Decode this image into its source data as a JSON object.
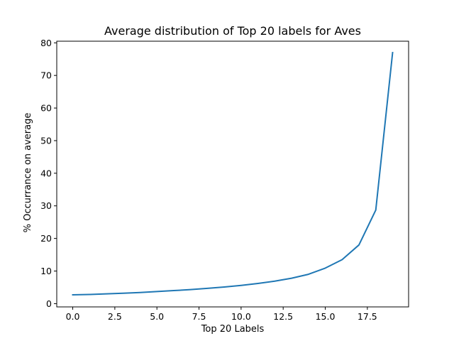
{
  "chart_data": {
    "type": "line",
    "title": "Average distribution of Top 20 labels for Aves",
    "xlabel": "Top 20 Labels",
    "ylabel": "% Occurrance on average",
    "xlim": [
      -0.95,
      19.95
    ],
    "ylim": [
      -1.0,
      80.5
    ],
    "xticks": [
      0.0,
      2.5,
      5.0,
      7.5,
      10.0,
      12.5,
      15.0,
      17.5
    ],
    "xtick_labels": [
      "0.0",
      "2.5",
      "5.0",
      "7.5",
      "10.0",
      "12.5",
      "15.0",
      "17.5"
    ],
    "yticks": [
      0,
      10,
      20,
      30,
      40,
      50,
      60,
      70,
      80
    ],
    "ytick_labels": [
      "0",
      "10",
      "20",
      "30",
      "40",
      "50",
      "60",
      "70",
      "80"
    ],
    "grid": false,
    "series": [
      {
        "color": "#1f77b4",
        "x": [
          0,
          1,
          2,
          3,
          4,
          5,
          6,
          7,
          8,
          9,
          10,
          11,
          12,
          13,
          14,
          15,
          16,
          17,
          18,
          19
        ],
        "y": [
          2.7,
          2.8,
          3.0,
          3.2,
          3.4,
          3.7,
          4.0,
          4.3,
          4.7,
          5.1,
          5.6,
          6.2,
          6.9,
          7.8,
          9.0,
          10.9,
          13.5,
          18.0,
          28.7,
          77.0
        ]
      }
    ]
  }
}
